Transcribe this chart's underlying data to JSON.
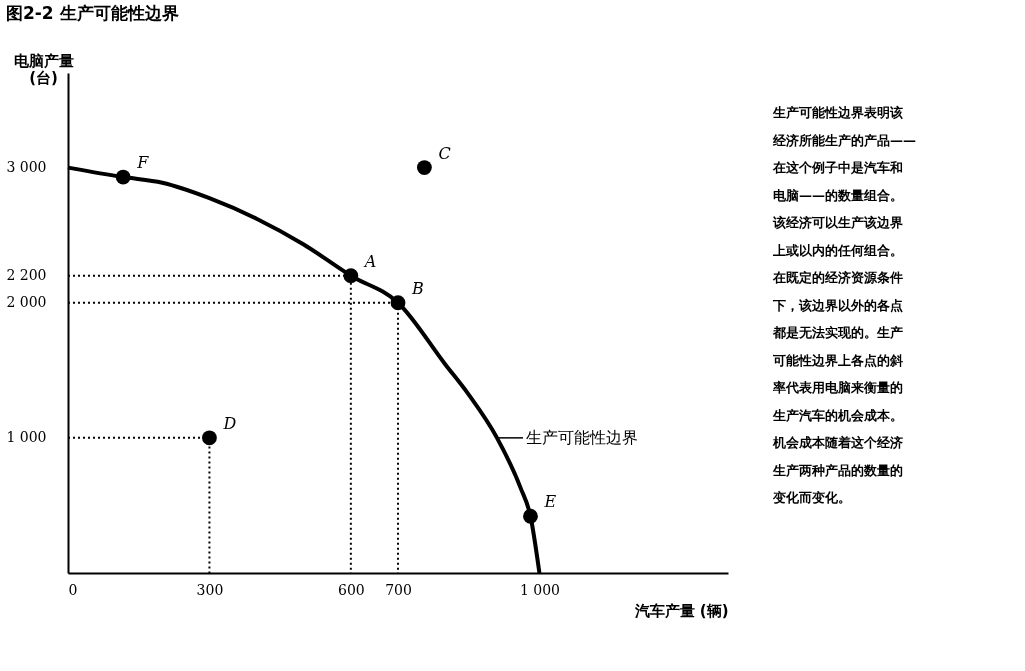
{
  "chart_data": {
    "type": "line",
    "title": "图2-2  生产可能性边界",
    "xlabel": "汽车产量 (辆)",
    "ylabel": "电脑产量\n(台)",
    "xlim": [
      0,
      1400
    ],
    "ylim": [
      0,
      3700
    ],
    "xticks": [
      0,
      300,
      600,
      700,
      {
        "value": 1000,
        "label": "1 000"
      }
    ],
    "yticks": [
      {
        "value": 1000,
        "label": "1 000"
      },
      {
        "value": 2000,
        "label": "2 000"
      },
      {
        "value": 2200,
        "label": "2 200"
      },
      {
        "value": 3000,
        "label": "3 000"
      }
    ],
    "grid": false,
    "marker": "none",
    "line_style": "solid",
    "series": [
      {
        "color": "#000000",
        "x": [
          0,
          117,
          200,
          300,
          400,
          500,
          600,
          700,
          800,
          850,
          910,
          960,
          981,
          1000
        ],
        "values": [
          3000,
          2930,
          2888,
          2774,
          2622,
          2431,
          2200,
          2000,
          1545,
          1320,
          1000,
          630,
          420,
          0
        ]
      },
      {
        "color": "#000000",
        "line_style": "dotted",
        "x": [
          0,
          600,
          600
        ],
        "values": [
          2200,
          2200,
          0
        ]
      },
      {
        "color": "#000000",
        "line_style": "dotted",
        "x": [
          0,
          700,
          700
        ],
        "values": [
          2000,
          2000,
          0
        ]
      },
      {
        "color": "#000000",
        "line_style": "dotted",
        "x": [
          0,
          300,
          300
        ],
        "values": [
          1000,
          1000,
          0
        ]
      },
      {
        "type": "scatter",
        "color": "#000000",
        "marker": "circle",
        "x": [
          117,
          600,
          700,
          756,
          300,
          981
        ],
        "values": [
          2930,
          2200,
          2000,
          3000,
          1000,
          420
        ]
      }
    ],
    "annotations": [
      {
        "text": "F",
        "x": 117,
        "y": 2930
      },
      {
        "text": "A",
        "x": 600,
        "y": 2200
      },
      {
        "text": "B",
        "x": 700,
        "y": 2000
      },
      {
        "text": "C",
        "x": 756,
        "y": 3000
      },
      {
        "text": "D",
        "x": 300,
        "y": 1000
      },
      {
        "text": "E",
        "x": 981,
        "y": 420
      },
      {
        "text": "生产可能性边界",
        "x": 910,
        "y": 1000
      },
      "生产可能性边界表明该经济所能生产的产品——在这个例子中是汽车和电脑——的数量组合。该经济可以生产该边界上或以内的任何组合。在既定的经济资源条件下，该边界以外的各点都是无法实现的。生产可能性边界上各点的斜率代表用电脑来衡量的生产汽车的机会成本。机会成本随着这个经济生产两种产品的数量的变化而变化。"
    ]
  }
}
